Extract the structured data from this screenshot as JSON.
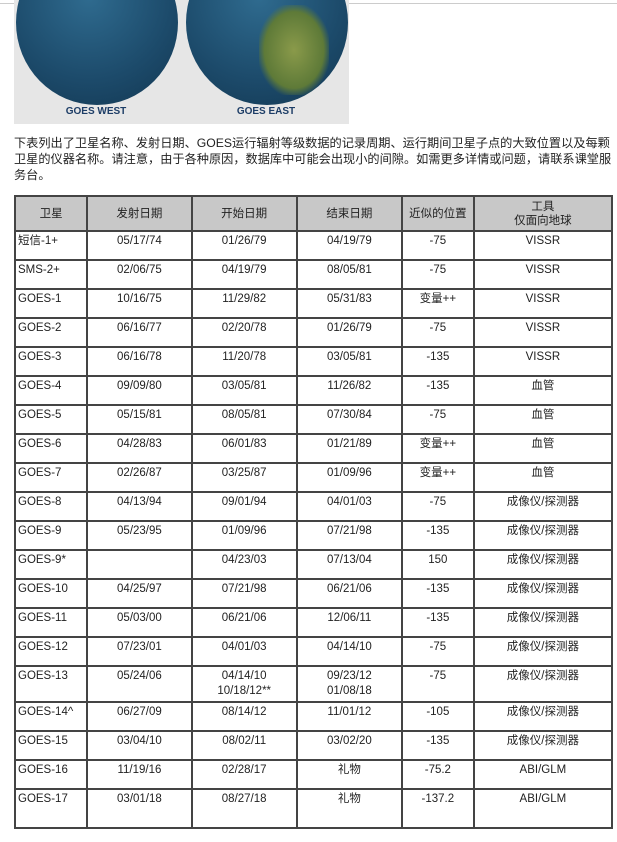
{
  "images": [
    {
      "label": "GOES WEST"
    },
    {
      "label": "GOES EAST"
    }
  ],
  "intro": "下表列出了卫星名称、发射日期、GOES运行辐射等级数据的记录周期、运行期间卫星子点的大致位置以及每颗卫星的仪器名称。请注意，由于各种原因，数据库中可能会出现小的间隙。如需更多详情或问题，请联系课堂服务台。",
  "table": {
    "headers": [
      "卫星",
      "发射日期",
      "开始日期",
      "结束日期",
      "近似的位置",
      "工具"
    ],
    "header_sub": "仅面向地球",
    "rows": [
      [
        "短信-1+",
        "05/17/74",
        "01/26/79",
        "04/19/79",
        "-75",
        "VISSR"
      ],
      [
        "SMS-2+",
        "02/06/75",
        "04/19/79",
        "08/05/81",
        "-75",
        "VISSR"
      ],
      [
        "GOES-1",
        "10/16/75",
        "11/29/82",
        "05/31/83",
        "变量++",
        "VISSR"
      ],
      [
        "GOES-2",
        "06/16/77",
        "02/20/78",
        "01/26/79",
        "-75",
        "VISSR"
      ],
      [
        "GOES-3",
        "06/16/78",
        "11/20/78",
        "03/05/81",
        "-135",
        "VISSR"
      ],
      [
        "GOES-4",
        "09/09/80",
        "03/05/81",
        "11/26/82",
        "-135",
        "血管"
      ],
      [
        "GOES-5",
        "05/15/81",
        "08/05/81",
        "07/30/84",
        "-75",
        "血管"
      ],
      [
        "GOES-6",
        "04/28/83",
        "06/01/83",
        "01/21/89",
        "变量++",
        "血管"
      ],
      [
        "GOES-7",
        "02/26/87",
        "03/25/87",
        "01/09/96",
        "变量++",
        "血管"
      ],
      [
        "GOES-8",
        "04/13/94",
        "09/01/94",
        "04/01/03",
        "-75",
        "成像仪/探测器"
      ],
      [
        "GOES-9",
        "05/23/95",
        "01/09/96",
        "07/21/98",
        "-135",
        "成像仪/探测器"
      ],
      [
        "GOES-9*",
        "",
        "04/23/03",
        "07/13/04",
        "150",
        "成像仪/探测器"
      ],
      [
        "GOES-10",
        "04/25/97",
        "07/21/98",
        "06/21/06",
        "-135",
        "成像仪/探测器"
      ],
      [
        "GOES-11",
        "05/03/00",
        "06/21/06",
        "12/06/11",
        "-135",
        "成像仪/探测器"
      ],
      [
        "GOES-12",
        "07/23/01",
        "04/01/03",
        "04/14/10",
        "-75",
        "成像仪/探测器"
      ],
      [
        "GOES-13",
        "05/24/06",
        "04/14/10\n10/18/12**",
        "09/23/12\n01/08/18",
        "-75",
        "成像仪/探测器"
      ],
      [
        "GOES-14^",
        "06/27/09",
        "08/14/12",
        "11/01/12",
        "-105",
        "成像仪/探测器"
      ],
      [
        "GOES-15",
        "03/04/10",
        "08/02/11",
        "03/02/20",
        "-135",
        "成像仪/探测器"
      ],
      [
        "GOES-16",
        "11/19/16",
        "02/28/17",
        "礼物",
        "-75.2",
        "ABI/GLM"
      ],
      [
        "GOES-17",
        "03/01/18",
        "08/27/18",
        "礼物",
        "-137.2",
        "ABI/GLM"
      ]
    ]
  }
}
